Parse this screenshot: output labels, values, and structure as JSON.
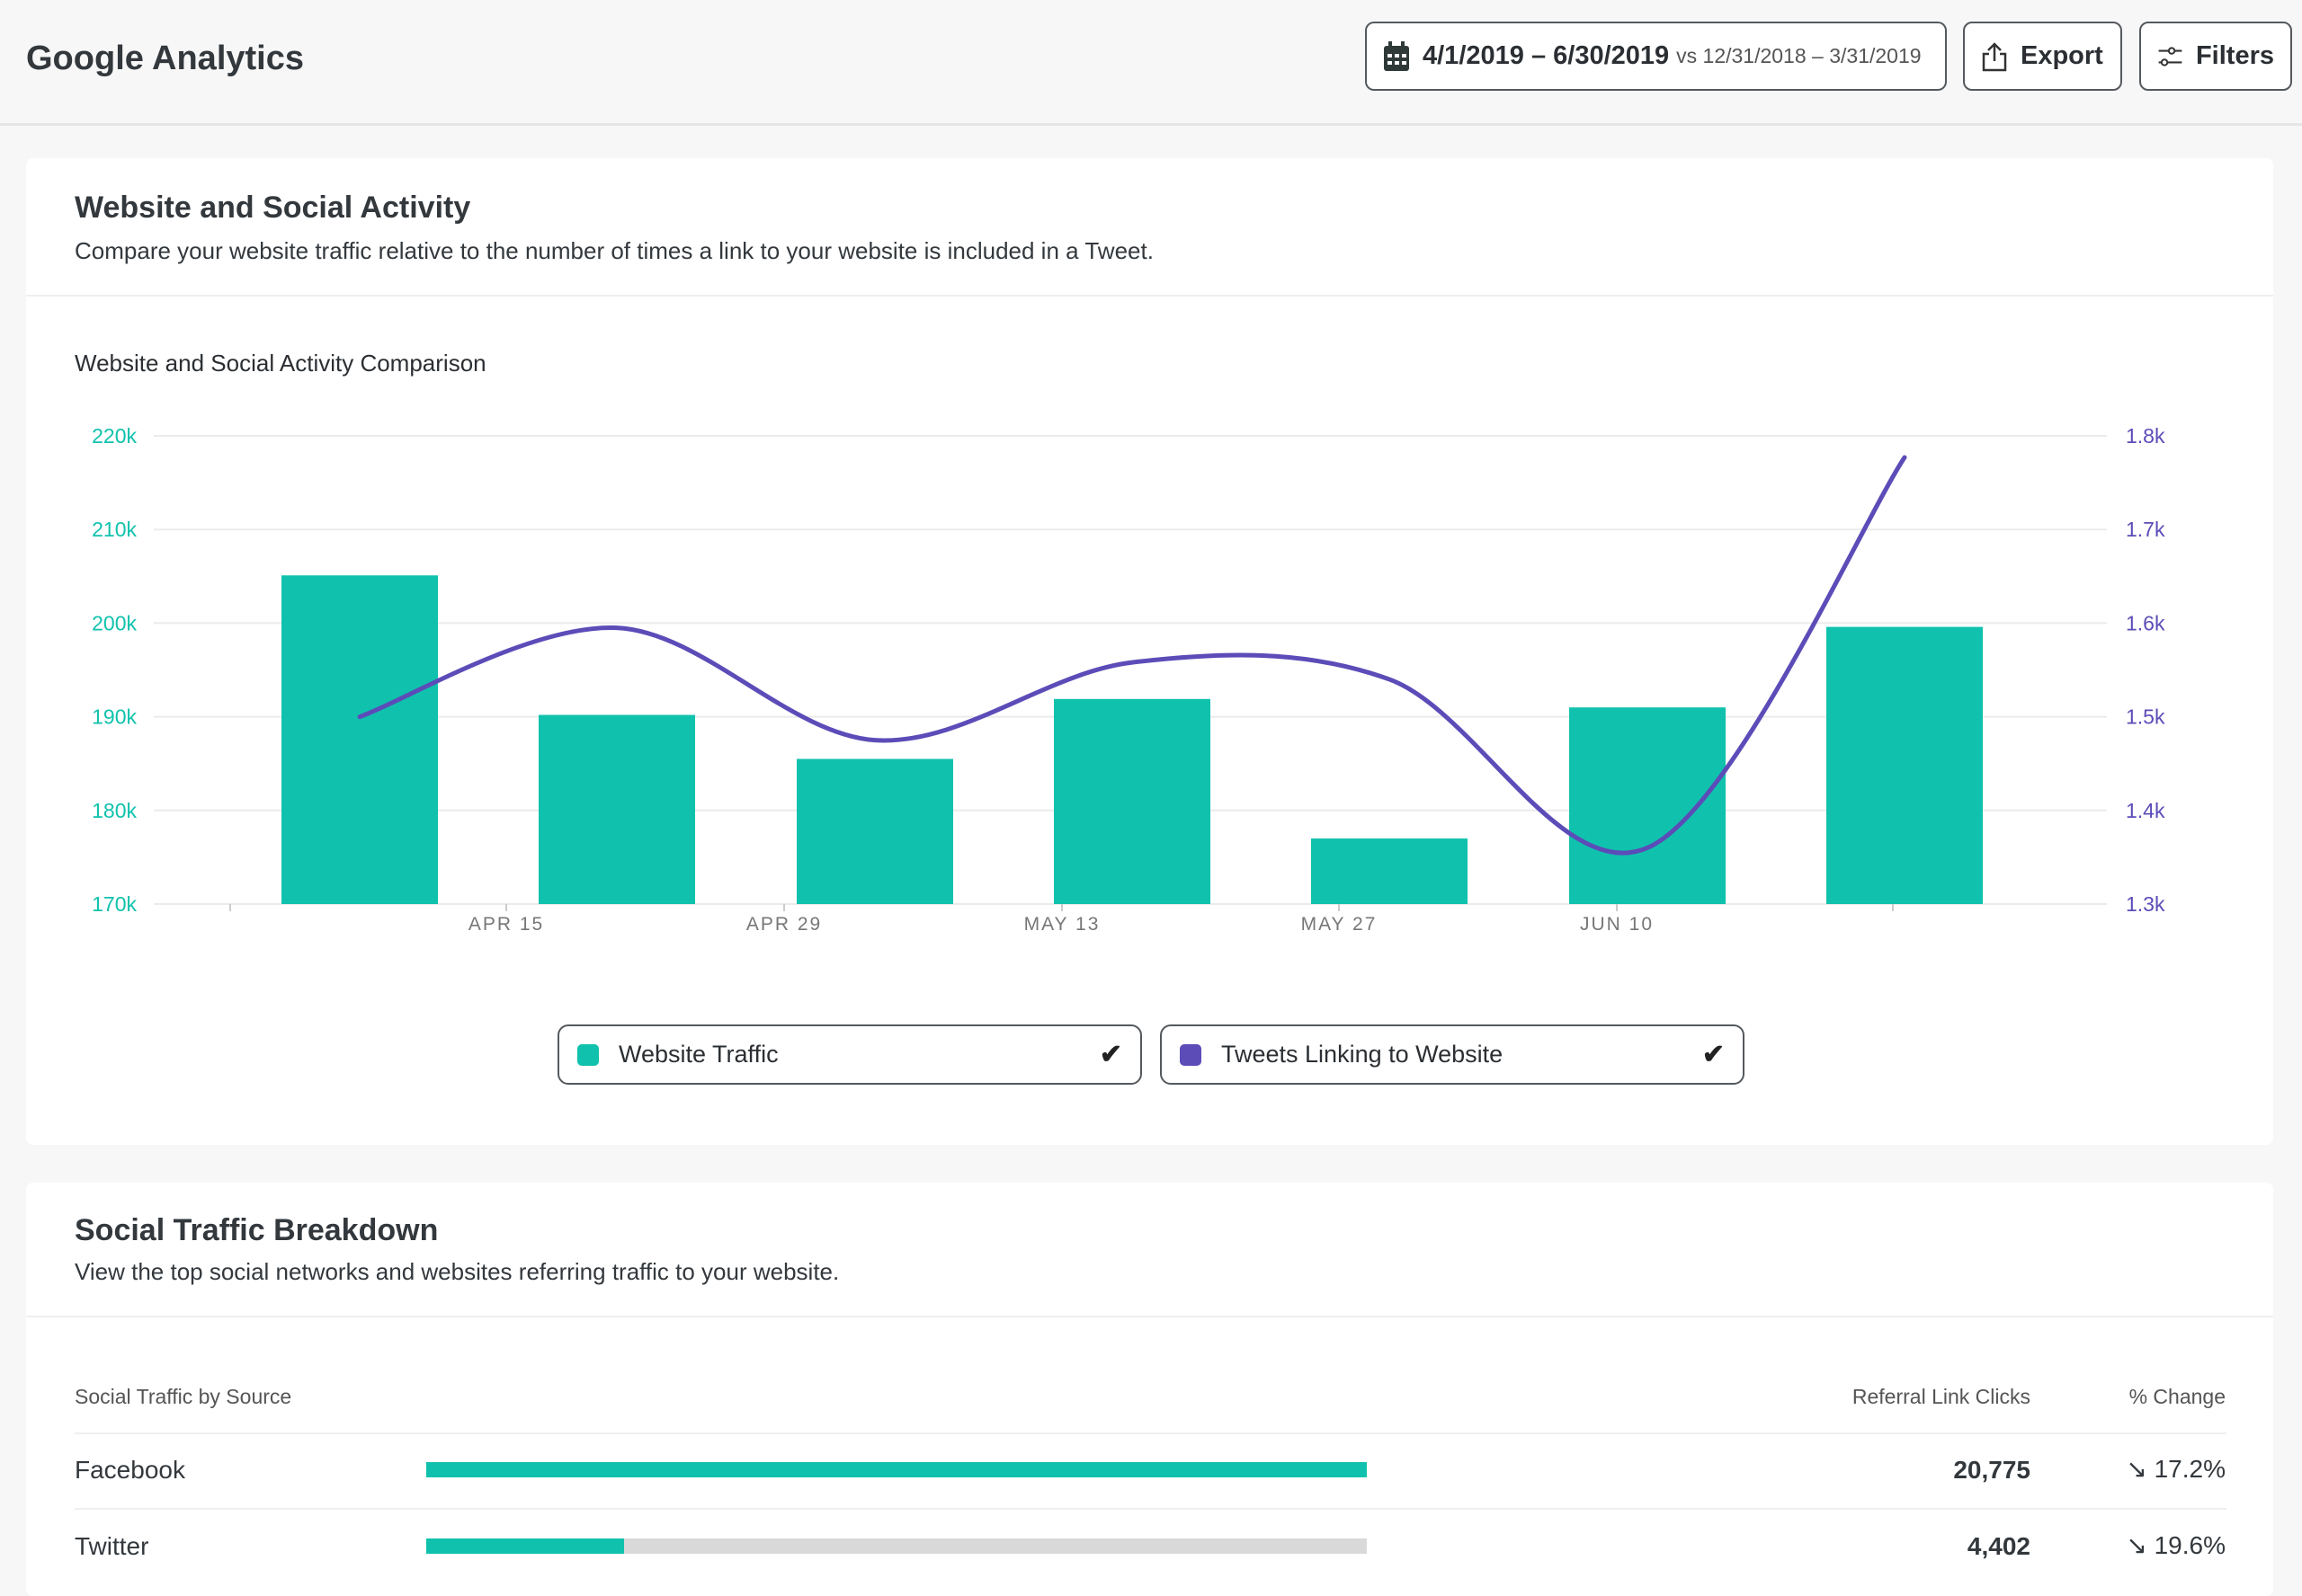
{
  "header": {
    "title": "Google Analytics",
    "date_range": "4/1/2019 – 6/30/2019",
    "vs_label": "vs",
    "compare_range": "12/31/2018 – 3/31/2019",
    "export_label": "Export",
    "filters_label": "Filters"
  },
  "activity": {
    "title": "Website and Social Activity",
    "subtitle": "Compare your website traffic relative to the number of times a link to your website is included in a Tweet.",
    "legend": [
      {
        "label": "Website Traffic",
        "color": "#10c2ad",
        "checked": true
      },
      {
        "label": "Tweets Linking to Website",
        "color": "#5b4cb8",
        "checked": true
      }
    ]
  },
  "chart_data": {
    "type": "bar+line",
    "title": "Website and Social Activity Comparison",
    "x_tick_labels": [
      "",
      "APR 15",
      "APR 29",
      "MAY 13",
      "MAY 27",
      "JUN 10",
      ""
    ],
    "y_left": {
      "ticks": [
        "170k",
        "180k",
        "190k",
        "200k",
        "210k",
        "220k"
      ],
      "range": [
        170000,
        220000
      ],
      "color": "#10c2ad"
    },
    "y_right": {
      "ticks": [
        "1.3k",
        "1.4k",
        "1.5k",
        "1.6k",
        "1.7k",
        "1.8k"
      ],
      "range": [
        1300,
        1800
      ],
      "color": "#5b4cb8"
    },
    "grid": true,
    "series": [
      {
        "name": "Website Traffic",
        "type": "bar",
        "axis": "left",
        "color": "#10c2ad",
        "values": [
          205100,
          190200,
          185500,
          191900,
          177000,
          191000,
          199600
        ]
      },
      {
        "name": "Tweets Linking to Website",
        "type": "line",
        "axis": "right",
        "color": "#5b4cb8",
        "values": [
          1500,
          1595,
          1475,
          1558,
          1540,
          1360,
          1777
        ]
      }
    ]
  },
  "breakdown": {
    "title": "Social Traffic Breakdown",
    "subtitle": "View the top social networks and websites referring traffic to your website.",
    "columns": [
      "Social Traffic by Source",
      "Referral Link Clicks",
      "% Change"
    ],
    "rows": [
      {
        "source": "Facebook",
        "share": 1.0,
        "clicks": "20,775",
        "change": "17.2%",
        "direction": "down"
      },
      {
        "source": "Twitter",
        "share": 0.21,
        "clicks": "4,402",
        "change": "19.6%",
        "direction": "down"
      }
    ],
    "change_icon": "↘"
  }
}
